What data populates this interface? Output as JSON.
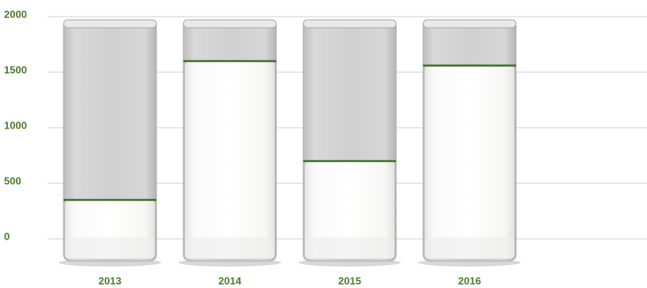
{
  "chart_data": {
    "type": "bar",
    "categories": [
      "2013",
      "2014",
      "2015",
      "2016"
    ],
    "values": [
      350,
      1600,
      700,
      1560
    ],
    "color": "#3f6f2a",
    "ylim": [
      0,
      2000
    ],
    "yticks": [
      0,
      500,
      1000,
      1500,
      2000
    ],
    "grid": true
  }
}
